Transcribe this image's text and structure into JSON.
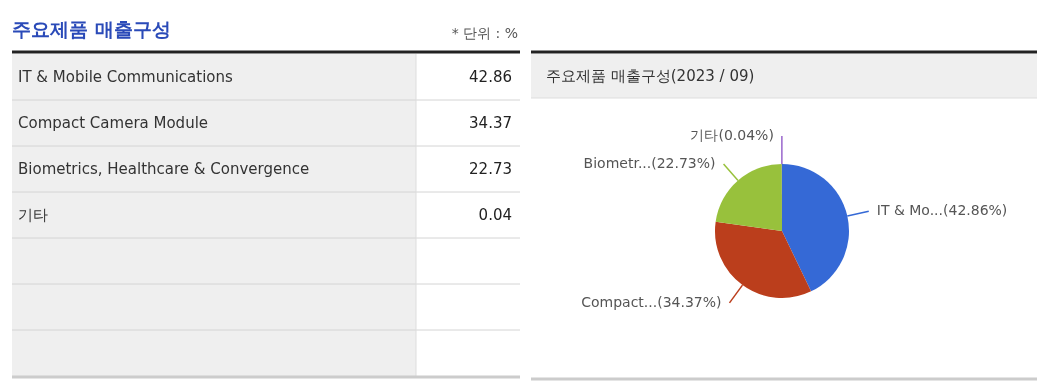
{
  "chart_data": [
    {
      "type": "other",
      "title": "주요제품 매출구성",
      "annotations": [
        "* 단위 : %"
      ],
      "categories": [
        "IT & Mobile Communications",
        "Compact Camera Module",
        "Biometrics, Healthcare & Convergence",
        "기타"
      ],
      "values": [
        42.86,
        34.37,
        22.73,
        0.04
      ],
      "data_labels": true
    },
    {
      "type": "pie",
      "title": "주요제품 매출구성(2023 / 09)",
      "categories": [
        null,
        null,
        null,
        null
      ],
      "values": [
        42.86,
        34.37,
        22.73,
        0.04
      ],
      "colors": [
        "#3569d6",
        "#bb3e1c",
        "#98c13c",
        "#9966cc"
      ],
      "value_labels": [
        "IT & Mo...(42.86%)",
        "Compact...(34.37%)",
        "Biometr...(22.73%)",
        "기타(0.04%)"
      ]
    }
  ]
}
